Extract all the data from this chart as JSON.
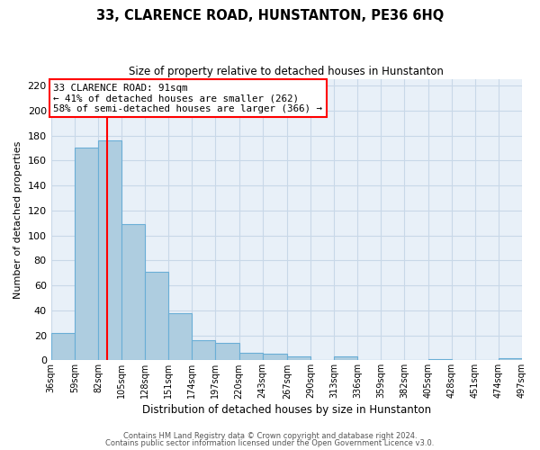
{
  "title": "33, CLARENCE ROAD, HUNSTANTON, PE36 6HQ",
  "subtitle": "Size of property relative to detached houses in Hunstanton",
  "xlabel": "Distribution of detached houses by size in Hunstanton",
  "ylabel": "Number of detached properties",
  "footnote1": "Contains HM Land Registry data © Crown copyright and database right 2024.",
  "footnote2": "Contains public sector information licensed under the Open Government Licence v3.0.",
  "bin_edges": [
    36,
    59,
    82,
    105,
    128,
    151,
    174,
    197,
    220,
    243,
    267,
    290,
    313,
    336,
    359,
    382,
    405,
    428,
    451,
    474,
    497
  ],
  "bin_labels": [
    "36sqm",
    "59sqm",
    "82sqm",
    "105sqm",
    "128sqm",
    "151sqm",
    "174sqm",
    "197sqm",
    "220sqm",
    "243sqm",
    "267sqm",
    "290sqm",
    "313sqm",
    "336sqm",
    "359sqm",
    "382sqm",
    "405sqm",
    "428sqm",
    "451sqm",
    "474sqm",
    "497sqm"
  ],
  "bar_heights": [
    22,
    170,
    176,
    109,
    71,
    38,
    16,
    14,
    6,
    5,
    3,
    0,
    3,
    0,
    0,
    0,
    1,
    0,
    0,
    2
  ],
  "bar_color": "#aecde0",
  "bar_edge_color": "#6aaed6",
  "grid_color": "#c8d8e8",
  "background_color": "#e8f0f8",
  "plot_bg_color": "#e8f0f8",
  "outer_bg_color": "#ffffff",
  "red_line_x": 91,
  "annotation_title": "33 CLARENCE ROAD: 91sqm",
  "annotation_line1": "← 41% of detached houses are smaller (262)",
  "annotation_line2": "58% of semi-detached houses are larger (366) →",
  "ylim": [
    0,
    225
  ],
  "yticks": [
    0,
    20,
    40,
    60,
    80,
    100,
    120,
    140,
    160,
    180,
    200,
    220
  ]
}
